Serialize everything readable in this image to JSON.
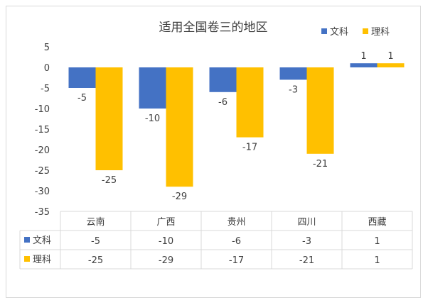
{
  "chart_data": {
    "type": "bar",
    "title": "适用全国卷三的地区",
    "categories": [
      "云南",
      "广西",
      "贵州",
      "四川",
      "西藏"
    ],
    "series": [
      {
        "name": "文科",
        "color": "#4472C4",
        "values": [
          -5,
          -10,
          -6,
          -3,
          1
        ]
      },
      {
        "name": "理科",
        "color": "#FFC000",
        "values": [
          -25,
          -29,
          -17,
          -21,
          1
        ]
      }
    ],
    "ylim": [
      -35,
      5
    ],
    "yticks": [
      5,
      0,
      -5,
      -10,
      -15,
      -20,
      -25,
      -30,
      -35
    ],
    "legend": "top-right",
    "data_table": true
  }
}
